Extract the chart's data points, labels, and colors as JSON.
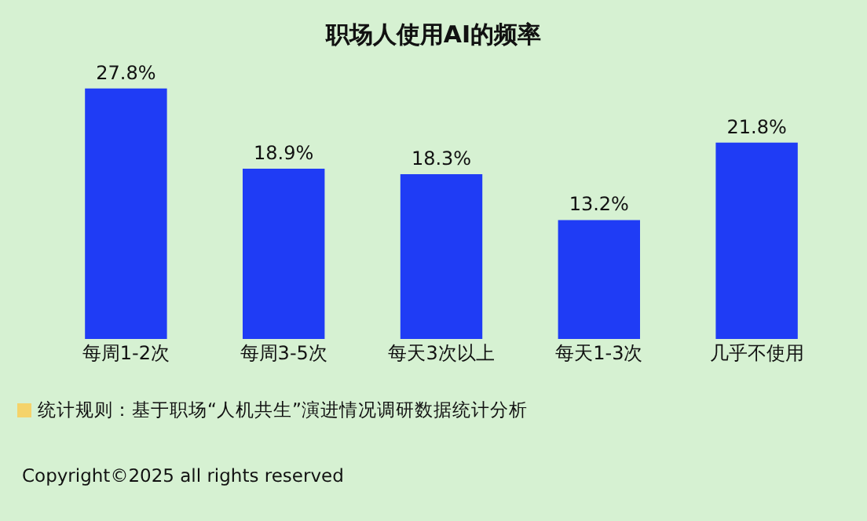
{
  "chart_data": {
    "type": "bar",
    "title": "职场人使用AI的频率",
    "categories": [
      "每周1-2次",
      "每周3-5次",
      "每天3次以上",
      "每天1-3次",
      "几乎不使用"
    ],
    "values": [
      27.8,
      18.9,
      18.3,
      13.2,
      21.8
    ],
    "value_labels": [
      "27.8%",
      "18.9%",
      "18.3%",
      "13.2%",
      "21.8%"
    ],
    "color": "#1f3cf5",
    "grid": false,
    "tick_labels": "x",
    "annotations": [
      "统计规则：基于职场“人机共生”演进情况调研数据统计分析",
      "Copyright©2025 all rights reserved"
    ]
  }
}
